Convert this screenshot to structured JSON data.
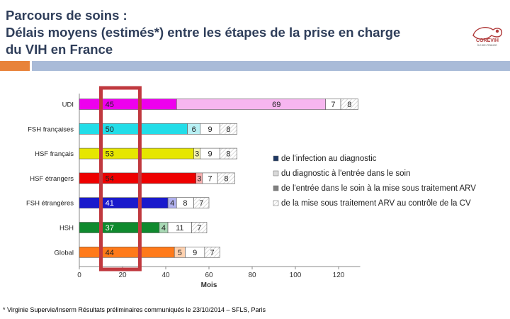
{
  "header": {
    "title_lines": [
      "Parcours de soins :",
      "Délais moyens (estimés*) entre les étapes de la prise en charge",
      "du VIH en France"
    ],
    "logo_text": "COREVIH",
    "logo_subtext": "ÎLE-DE-FRANCE"
  },
  "footnote": "* Virginie Supervie/Inserm Résultats préliminaires communiqués le 23/10/2014 – SFLS, Paris",
  "colors": {
    "title": "#2f3e5a",
    "band_orange": "#e8833a",
    "band_blue": "#a9bbd8",
    "highlight_box": "#c0393f",
    "legend_1": "#1f3864",
    "legend_2": "#d9d9d9",
    "legend_3": "#808080",
    "legend_4": "#bfbfbf"
  },
  "chart_data": {
    "type": "bar",
    "orientation": "horizontal",
    "stacked": true,
    "categories": [
      "UDI",
      "FSH françaises",
      "HSF français",
      "HSF étrangers",
      "FSH étrangères",
      "HSH",
      "Global"
    ],
    "category_colors": [
      "#ee00ee",
      "#22dde8",
      "#e6e600",
      "#ee0000",
      "#1a1acc",
      "#0f8a2e",
      "#ff7a1a"
    ],
    "category_light_colors": [
      "#f7b6f0",
      "#b8f0f4",
      "#f5f5b0",
      "#f8b0b0",
      "#b0b0ee",
      "#a8d8b4",
      "#ffd2b0"
    ],
    "series": [
      {
        "name": "de l'infection au diagnostic",
        "values": [
          45,
          50,
          53,
          54,
          41,
          37,
          44
        ]
      },
      {
        "name": "du diagnostic à l'entrée dans le soin",
        "values": [
          69,
          6,
          3,
          3,
          4,
          4,
          5
        ]
      },
      {
        "name": "de l'entrée dans le soin à la mise sous traitement ARV",
        "values": [
          7,
          9,
          9,
          7,
          8,
          11,
          9
        ]
      },
      {
        "name": "de la mise sous traitement ARV au contrôle de la CV",
        "values": [
          8,
          8,
          8,
          8,
          7,
          7,
          7
        ]
      }
    ],
    "xlabel": "Mois",
    "ylabel": "",
    "xlim": [
      0,
      130
    ],
    "xticks": [
      0,
      20,
      40,
      60,
      80,
      100,
      120
    ],
    "highlight_range": [
      10,
      28
    ],
    "grid": false,
    "legend_position": "right"
  }
}
